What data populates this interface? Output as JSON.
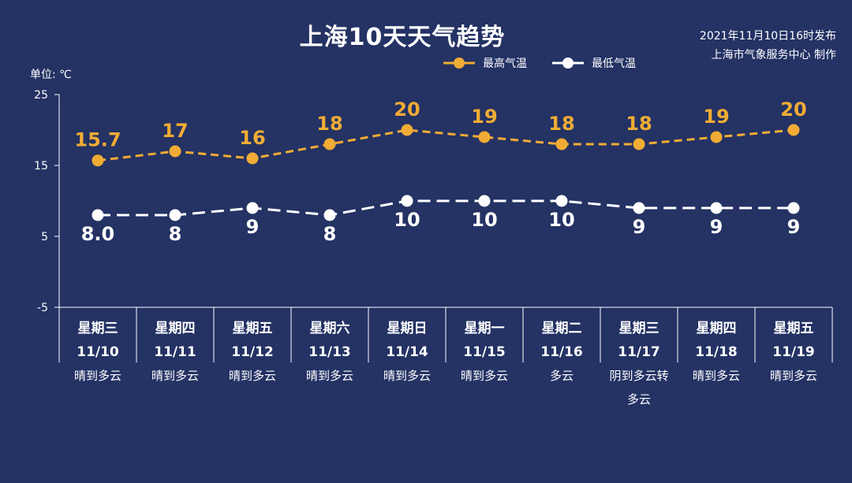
{
  "header": {
    "title": "上海10天天气趋势",
    "publish_time": "2021年11月10日16时发布",
    "publisher": "上海市气象服务中心 制作",
    "unit_label": "单位: ℃"
  },
  "colors": {
    "background": "#243264",
    "high": "#f0ac35",
    "low": "#ffffff"
  },
  "chart_data": {
    "type": "line",
    "title": "上海10天天气趋势",
    "ylabel": "单位: ℃",
    "ylim": [
      -5,
      25
    ],
    "yticks": [
      "25",
      "15",
      "5",
      "-5"
    ],
    "grid": false,
    "legend_position": "top-right",
    "categories": [
      {
        "weekday": "星期三",
        "date": "11/10",
        "weather": "晴到多云"
      },
      {
        "weekday": "星期四",
        "date": "11/11",
        "weather": "晴到多云"
      },
      {
        "weekday": "星期五",
        "date": "11/12",
        "weather": "晴到多云"
      },
      {
        "weekday": "星期六",
        "date": "11/13",
        "weather": "晴到多云"
      },
      {
        "weekday": "星期日",
        "date": "11/14",
        "weather": "晴到多云"
      },
      {
        "weekday": "星期一",
        "date": "11/15",
        "weather": "晴到多云"
      },
      {
        "weekday": "星期二",
        "date": "11/16",
        "weather": "多云"
      },
      {
        "weekday": "星期三",
        "date": "11/17",
        "weather": "阴到多云转\n多云"
      },
      {
        "weekday": "星期四",
        "date": "11/18",
        "weather": "晴到多云"
      },
      {
        "weekday": "星期五",
        "date": "11/19",
        "weather": "晴到多云"
      }
    ],
    "series": [
      {
        "name": "最高气温",
        "values": [
          15.7,
          17,
          16,
          18,
          20,
          19,
          18,
          18,
          19,
          20
        ],
        "labels": [
          "15.7",
          "17",
          "16",
          "18",
          "20",
          "19",
          "18",
          "18",
          "19",
          "20"
        ]
      },
      {
        "name": "最低气温",
        "values": [
          8.0,
          8,
          9,
          8,
          10,
          10,
          10,
          9,
          9,
          9
        ],
        "labels": [
          "8.0",
          "8",
          "9",
          "8",
          "10",
          "10",
          "10",
          "9",
          "9",
          "9"
        ]
      }
    ]
  }
}
